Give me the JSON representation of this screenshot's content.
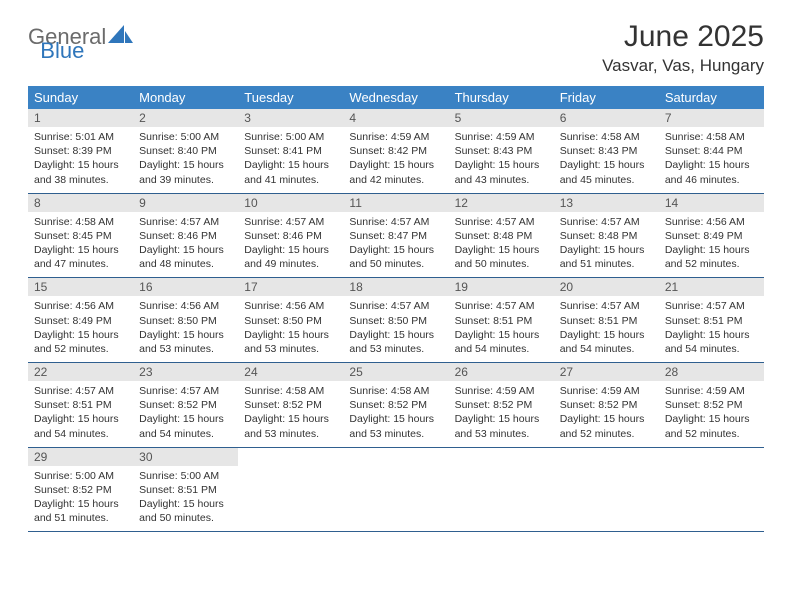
{
  "brand": {
    "part1": "General",
    "part2": "Blue"
  },
  "title": "June 2025",
  "location": "Vasvar, Vas, Hungary",
  "colors": {
    "header_bg": "#3a82c4",
    "daynum_bg": "#e6e6e6",
    "row_divider": "#2f5f8f",
    "text": "#333333",
    "brand_gray": "#6b6b6b",
    "brand_blue": "#2f76bb"
  },
  "weekdays": [
    "Sunday",
    "Monday",
    "Tuesday",
    "Wednesday",
    "Thursday",
    "Friday",
    "Saturday"
  ],
  "days": [
    {
      "n": "1",
      "sr": "5:01 AM",
      "ss": "8:39 PM",
      "dl": "15 hours and 38 minutes."
    },
    {
      "n": "2",
      "sr": "5:00 AM",
      "ss": "8:40 PM",
      "dl": "15 hours and 39 minutes."
    },
    {
      "n": "3",
      "sr": "5:00 AM",
      "ss": "8:41 PM",
      "dl": "15 hours and 41 minutes."
    },
    {
      "n": "4",
      "sr": "4:59 AM",
      "ss": "8:42 PM",
      "dl": "15 hours and 42 minutes."
    },
    {
      "n": "5",
      "sr": "4:59 AM",
      "ss": "8:43 PM",
      "dl": "15 hours and 43 minutes."
    },
    {
      "n": "6",
      "sr": "4:58 AM",
      "ss": "8:43 PM",
      "dl": "15 hours and 45 minutes."
    },
    {
      "n": "7",
      "sr": "4:58 AM",
      "ss": "8:44 PM",
      "dl": "15 hours and 46 minutes."
    },
    {
      "n": "8",
      "sr": "4:58 AM",
      "ss": "8:45 PM",
      "dl": "15 hours and 47 minutes."
    },
    {
      "n": "9",
      "sr": "4:57 AM",
      "ss": "8:46 PM",
      "dl": "15 hours and 48 minutes."
    },
    {
      "n": "10",
      "sr": "4:57 AM",
      "ss": "8:46 PM",
      "dl": "15 hours and 49 minutes."
    },
    {
      "n": "11",
      "sr": "4:57 AM",
      "ss": "8:47 PM",
      "dl": "15 hours and 50 minutes."
    },
    {
      "n": "12",
      "sr": "4:57 AM",
      "ss": "8:48 PM",
      "dl": "15 hours and 50 minutes."
    },
    {
      "n": "13",
      "sr": "4:57 AM",
      "ss": "8:48 PM",
      "dl": "15 hours and 51 minutes."
    },
    {
      "n": "14",
      "sr": "4:56 AM",
      "ss": "8:49 PM",
      "dl": "15 hours and 52 minutes."
    },
    {
      "n": "15",
      "sr": "4:56 AM",
      "ss": "8:49 PM",
      "dl": "15 hours and 52 minutes."
    },
    {
      "n": "16",
      "sr": "4:56 AM",
      "ss": "8:50 PM",
      "dl": "15 hours and 53 minutes."
    },
    {
      "n": "17",
      "sr": "4:56 AM",
      "ss": "8:50 PM",
      "dl": "15 hours and 53 minutes."
    },
    {
      "n": "18",
      "sr": "4:57 AM",
      "ss": "8:50 PM",
      "dl": "15 hours and 53 minutes."
    },
    {
      "n": "19",
      "sr": "4:57 AM",
      "ss": "8:51 PM",
      "dl": "15 hours and 54 minutes."
    },
    {
      "n": "20",
      "sr": "4:57 AM",
      "ss": "8:51 PM",
      "dl": "15 hours and 54 minutes."
    },
    {
      "n": "21",
      "sr": "4:57 AM",
      "ss": "8:51 PM",
      "dl": "15 hours and 54 minutes."
    },
    {
      "n": "22",
      "sr": "4:57 AM",
      "ss": "8:51 PM",
      "dl": "15 hours and 54 minutes."
    },
    {
      "n": "23",
      "sr": "4:57 AM",
      "ss": "8:52 PM",
      "dl": "15 hours and 54 minutes."
    },
    {
      "n": "24",
      "sr": "4:58 AM",
      "ss": "8:52 PM",
      "dl": "15 hours and 53 minutes."
    },
    {
      "n": "25",
      "sr": "4:58 AM",
      "ss": "8:52 PM",
      "dl": "15 hours and 53 minutes."
    },
    {
      "n": "26",
      "sr": "4:59 AM",
      "ss": "8:52 PM",
      "dl": "15 hours and 53 minutes."
    },
    {
      "n": "27",
      "sr": "4:59 AM",
      "ss": "8:52 PM",
      "dl": "15 hours and 52 minutes."
    },
    {
      "n": "28",
      "sr": "4:59 AM",
      "ss": "8:52 PM",
      "dl": "15 hours and 52 minutes."
    },
    {
      "n": "29",
      "sr": "5:00 AM",
      "ss": "8:52 PM",
      "dl": "15 hours and 51 minutes."
    },
    {
      "n": "30",
      "sr": "5:00 AM",
      "ss": "8:51 PM",
      "dl": "15 hours and 50 minutes."
    }
  ],
  "labels": {
    "sunrise": "Sunrise: ",
    "sunset": "Sunset: ",
    "daylight": "Daylight: "
  }
}
